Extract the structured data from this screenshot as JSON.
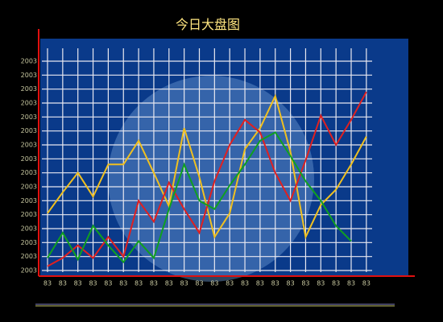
{
  "chart_data": {
    "type": "line",
    "title": "今日大盘图",
    "categories": [
      "83",
      "83",
      "83",
      "83",
      "83",
      "83",
      "83",
      "83",
      "83",
      "83",
      "83",
      "83",
      "83",
      "83",
      "83",
      "83",
      "83",
      "83",
      "83",
      "83",
      "83",
      "83"
    ],
    "ylim": [
      0,
      16.5
    ],
    "yticks": [
      {
        "value": 0,
        "label": "2003"
      },
      {
        "value": 1,
        "label": "2003"
      },
      {
        "value": 2,
        "label": "2003"
      },
      {
        "value": 3,
        "label": "2003"
      },
      {
        "value": 4,
        "label": "2003"
      },
      {
        "value": 5,
        "label": "2003"
      },
      {
        "value": 6,
        "label": "2003"
      },
      {
        "value": 7,
        "label": "2003"
      },
      {
        "value": 8,
        "label": "2003"
      },
      {
        "value": 9,
        "label": "2003"
      },
      {
        "value": 10,
        "label": "2003"
      },
      {
        "value": 11,
        "label": "2003"
      },
      {
        "value": 12,
        "label": "2003"
      },
      {
        "value": 13,
        "label": "2003"
      },
      {
        "value": 14,
        "label": "2003"
      },
      {
        "value": 15,
        "label": "2003"
      }
    ],
    "grid": true,
    "series": [
      {
        "color": "#f0c020",
        "values": [
          4.1,
          5.6,
          7.0,
          5.3,
          7.6,
          7.6,
          9.3,
          7.0,
          4.6,
          10.2,
          6.7,
          2.4,
          4.1,
          8.7,
          10.2,
          12.5,
          8.5,
          2.4,
          4.7,
          5.8,
          7.6,
          9.6
        ]
      },
      {
        "color": "#e02020",
        "values": [
          0.3,
          0.9,
          1.8,
          0.9,
          2.4,
          1.0,
          5.0,
          3.5,
          6.3,
          4.4,
          2.7,
          6.4,
          9.0,
          10.8,
          9.9,
          7.0,
          5.0,
          7.9,
          11.1,
          9.0,
          10.8,
          12.8
        ]
      },
      {
        "color": "#10a020",
        "values": [
          0.9,
          2.7,
          0.8,
          3.2,
          1.8,
          0.6,
          2.1,
          0.9,
          4.4,
          7.6,
          5.0,
          4.4,
          6.1,
          7.6,
          9.3,
          9.9,
          8.2,
          6.4,
          5.0,
          3.2,
          2.1,
          null
        ]
      }
    ]
  }
}
